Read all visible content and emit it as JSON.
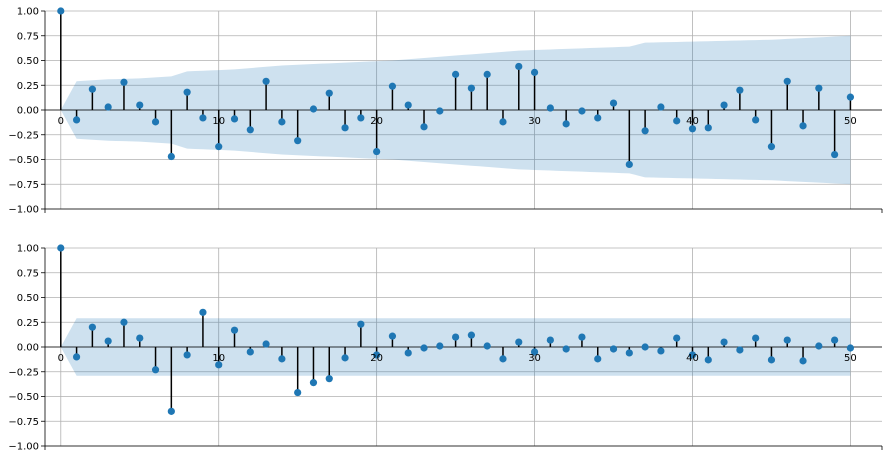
{
  "colors": {
    "marker": "#1f77b4",
    "band": "#1f77b4",
    "stem": "#000000",
    "grid": "#b0b0b0"
  },
  "chart_data": [
    {
      "type": "stem",
      "title": "",
      "xlabel": "",
      "ylabel": "",
      "xlim": [
        -1,
        52
      ],
      "ylim": [
        -1,
        1
      ],
      "grid": true,
      "x_ticks": [
        0,
        10,
        20,
        30,
        40,
        50
      ],
      "y_ticks": [
        -1.0,
        -0.75,
        -0.5,
        -0.25,
        0.0,
        0.25,
        0.5,
        0.75,
        1.0
      ],
      "y_tick_labels": [
        "−1.00",
        "−0.75",
        "−0.50",
        "−0.25",
        "0.00",
        "0.25",
        "0.50",
        "0.75",
        "1.00"
      ],
      "lags": [
        0,
        1,
        2,
        3,
        4,
        5,
        6,
        7,
        8,
        9,
        10,
        11,
        12,
        13,
        14,
        15,
        16,
        17,
        18,
        19,
        20,
        21,
        22,
        23,
        24,
        25,
        26,
        27,
        28,
        29,
        30,
        31,
        32,
        33,
        34,
        35,
        36,
        37,
        38,
        39,
        40,
        41,
        42,
        43,
        44,
        45,
        46,
        47,
        48,
        49,
        50
      ],
      "values": [
        1.0,
        -0.1,
        0.21,
        0.03,
        0.28,
        0.05,
        -0.12,
        -0.47,
        0.18,
        -0.08,
        -0.37,
        -0.09,
        -0.2,
        0.29,
        -0.12,
        -0.31,
        0.01,
        0.17,
        -0.18,
        -0.08,
        -0.42,
        0.24,
        0.05,
        -0.17,
        -0.01,
        0.36,
        0.22,
        0.36,
        -0.12,
        0.44,
        0.38,
        0.02,
        -0.14,
        -0.01,
        -0.08,
        0.07,
        -0.55,
        -0.21,
        0.03,
        -0.11,
        -0.19,
        -0.18,
        0.05,
        0.2,
        -0.1,
        -0.37,
        0.29,
        -0.16,
        0.22,
        -0.45,
        0.13
      ],
      "confidence_band": [
        {
          "lag": 0,
          "upper": 0.0
        },
        {
          "lag": 1,
          "upper": 0.29
        },
        {
          "lag": 3,
          "upper": 0.31
        },
        {
          "lag": 5,
          "upper": 0.32
        },
        {
          "lag": 7,
          "upper": 0.34
        },
        {
          "lag": 8,
          "upper": 0.39
        },
        {
          "lag": 11,
          "upper": 0.41
        },
        {
          "lag": 14,
          "upper": 0.45
        },
        {
          "lag": 21,
          "upper": 0.5
        },
        {
          "lag": 25,
          "upper": 0.55
        },
        {
          "lag": 29,
          "upper": 0.6
        },
        {
          "lag": 36,
          "upper": 0.64
        },
        {
          "lag": 37,
          "upper": 0.68
        },
        {
          "lag": 45,
          "upper": 0.71
        },
        {
          "lag": 50,
          "upper": 0.75
        }
      ]
    },
    {
      "type": "stem",
      "title": "",
      "xlabel": "",
      "ylabel": "",
      "xlim": [
        -1,
        52
      ],
      "ylim": [
        -1,
        1
      ],
      "grid": true,
      "x_ticks": [
        0,
        10,
        20,
        30,
        40,
        50
      ],
      "y_ticks": [
        -1.0,
        -0.75,
        -0.5,
        -0.25,
        0.0,
        0.25,
        0.5,
        0.75,
        1.0
      ],
      "y_tick_labels": [
        "−1.00",
        "−0.75",
        "−0.50",
        "−0.25",
        "0.00",
        "0.25",
        "0.50",
        "0.75",
        "1.00"
      ],
      "lags": [
        0,
        1,
        2,
        3,
        4,
        5,
        6,
        7,
        8,
        9,
        10,
        11,
        12,
        13,
        14,
        15,
        16,
        17,
        18,
        19,
        20,
        21,
        22,
        23,
        24,
        25,
        26,
        27,
        28,
        29,
        30,
        31,
        32,
        33,
        34,
        35,
        36,
        37,
        38,
        39,
        40,
        41,
        42,
        43,
        44,
        45,
        46,
        47,
        48,
        49,
        50
      ],
      "values": [
        1.0,
        -0.1,
        0.2,
        0.06,
        0.25,
        0.09,
        -0.23,
        -0.65,
        -0.08,
        0.35,
        -0.18,
        0.17,
        -0.05,
        0.03,
        -0.12,
        -0.46,
        -0.36,
        -0.32,
        -0.11,
        0.23,
        -0.08,
        0.11,
        -0.06,
        -0.01,
        0.01,
        0.1,
        0.12,
        0.01,
        -0.12,
        0.05,
        -0.05,
        0.07,
        -0.02,
        0.1,
        -0.12,
        -0.02,
        -0.06,
        0.0,
        -0.04,
        0.09,
        -0.08,
        -0.13,
        0.05,
        -0.03,
        0.09,
        -0.13,
        0.07,
        -0.14,
        0.01,
        0.07,
        -0.01
      ],
      "confidence_band": [
        {
          "lag": 0,
          "upper": 0.0
        },
        {
          "lag": 1,
          "upper": 0.29
        },
        {
          "lag": 50,
          "upper": 0.29
        }
      ]
    }
  ]
}
